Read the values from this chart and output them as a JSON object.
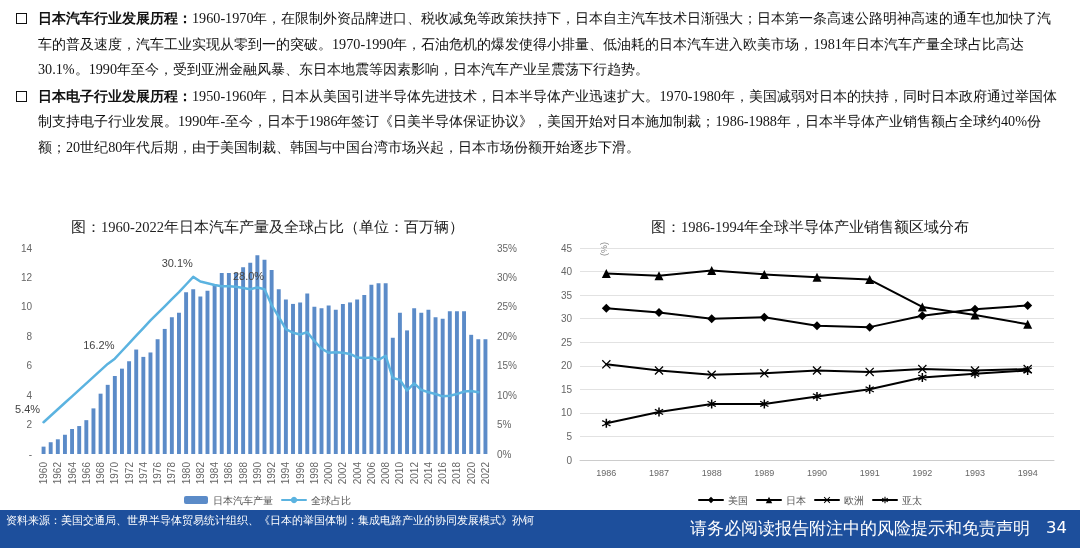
{
  "chart_data": [
    {
      "type": "other",
      "annotations": [
        "日本汽车行业发展历程：1960-1970年，在限制外资品牌进口、税收减免等政策扶持下，日本自主汽车技术日渐强大；日本第一条高速公路明神高速的通车也加快了汽车的普及速度，汽车工业实现从零到一的突破。1970-1990年，石油危机的爆发使得小排量、低油耗的日本汽车进入欧美市场，1981年日本汽车产量全球占比高达30.1%。1990年至今，受到亚洲金融风暴、东日本地震等因素影响，日本汽车产业呈震荡下行趋势。",
        "日本电子行业发展历程：1950-1960年，日本从美国引进半导体先进技术，日本半导体产业迅速扩大。1970-1980年，美国减弱对日本的扶持，同时日本政府通过举国体制支持电子行业发展。1990年-至今，日本于1986年签订《日美半导体保证协议》，美国开始对日本施加制裁；1986-1988年，日本半导体产业销售额占全球约40%份额；20世纪80年代后期，由于美国制裁、韩国与中国台湾市场兴起，日本市场份额开始逐步下滑。"
      ]
    },
    {
      "type": "bar",
      "title": "图：1960-2022年日本汽车产量及全球占比（单位：百万辆）",
      "categories": [
        "1960",
        null,
        "1962",
        null,
        "1964",
        null,
        "1966",
        null,
        "1968",
        null,
        "1970",
        null,
        "1972",
        null,
        "1974",
        null,
        "1976",
        null,
        "1978",
        null,
        "1980",
        null,
        "1982",
        null,
        "1984",
        null,
        "1986",
        null,
        "1988",
        null,
        "1990",
        null,
        "1992",
        null,
        "1994",
        null,
        "1996",
        null,
        "1998",
        null,
        "2000",
        null,
        "2002",
        null,
        "2004",
        null,
        "2006",
        null,
        "2008",
        null,
        "2010",
        null,
        "2012",
        null,
        "2014",
        null,
        "2016",
        null,
        "2018",
        null,
        "2020",
        null,
        "2022"
      ],
      "series": [
        {
          "name": "日本汽车产量",
          "type": "bar",
          "color": "#5b8bc8",
          "values": [
            0.5,
            0.8,
            1.0,
            1.3,
            1.7,
            1.9,
            2.3,
            3.1,
            4.1,
            4.7,
            5.3,
            5.8,
            6.3,
            7.1,
            6.6,
            6.9,
            7.8,
            8.5,
            9.3,
            9.6,
            11.0,
            11.2,
            10.7,
            11.1,
            11.5,
            12.3,
            12.3,
            12.3,
            12.7,
            13.0,
            13.5,
            13.2,
            12.5,
            11.2,
            10.5,
            10.2,
            10.3,
            10.9,
            10.0,
            9.9,
            10.1,
            9.8,
            10.2,
            10.3,
            10.5,
            10.8,
            11.5,
            11.6,
            11.6,
            7.9,
            9.6,
            8.4,
            9.9,
            9.6,
            9.8,
            9.3,
            9.2,
            9.7,
            9.7,
            9.7,
            8.1,
            7.8,
            7.8
          ]
        },
        {
          "name": "全球占比",
          "type": "line",
          "axis": "y2",
          "color": "#5bb3e0",
          "marker": "none",
          "values": [
            5.4,
            6.5,
            7.6,
            8.7,
            9.8,
            10.9,
            12.0,
            13.1,
            14.2,
            15.3,
            16.2,
            17.5,
            18.8,
            20.1,
            21.4,
            22.7,
            23.9,
            25.1,
            26.3,
            27.5,
            28.8,
            30.1,
            29.3,
            29.0,
            28.7,
            28.5,
            28.5,
            28.4,
            28.2,
            28.0,
            28.3,
            28.0,
            25.3,
            23.3,
            21.2,
            20.6,
            20.3,
            20.7,
            19.2,
            17.9,
            17.2,
            17.3,
            17.2,
            17.0,
            16.4,
            16.3,
            16.4,
            16.0,
            16.7,
            12.9,
            12.6,
            10.8,
            12.0,
            10.9,
            10.5,
            10.2,
            9.8,
            9.9,
            10.2,
            10.6,
            10.7,
            10.5,
            null
          ],
          "value_labels": [
            "5.4%",
            null,
            null,
            null,
            null,
            null,
            null,
            null,
            null,
            null,
            "16.2%",
            null,
            null,
            null,
            null,
            null,
            null,
            null,
            null,
            null,
            null,
            "30.1%",
            null,
            null,
            null,
            null,
            null,
            null,
            null,
            null,
            null,
            "28.0%",
            null,
            null,
            null,
            null,
            null,
            null,
            null,
            null,
            null,
            null,
            null,
            null,
            null,
            null,
            null,
            null,
            null,
            null,
            null,
            null,
            null,
            null,
            null,
            null,
            null,
            null,
            null,
            null,
            null,
            null,
            null
          ]
        }
      ],
      "ylim": [
        0,
        14
      ],
      "yticks": [
        {
          "value": 0,
          "label": "-"
        },
        2,
        4,
        6,
        8,
        10,
        12,
        14
      ],
      "y2lim": [
        0,
        35
      ],
      "y2ticks": [
        {
          "value": 0,
          "label": "0%"
        },
        {
          "value": 5,
          "label": "5%"
        },
        {
          "value": 10,
          "label": "10%"
        },
        {
          "value": 15,
          "label": "15%"
        },
        {
          "value": 20,
          "label": "20%"
        },
        {
          "value": 25,
          "label": "25%"
        },
        {
          "value": 30,
          "label": "30%"
        },
        {
          "value": 35,
          "label": "35%"
        }
      ],
      "grid": false,
      "legend": "bottom"
    },
    {
      "type": "line",
      "title": "图：1986-1994年全球半导体产业销售额区域分布",
      "ylabel": "(%)",
      "categories": [
        "1986",
        "1987",
        "1988",
        "1989",
        "1990",
        "1991",
        "1992",
        "1993",
        "1994"
      ],
      "series": [
        {
          "name": "美国",
          "color": "#000000",
          "marker": "diamond",
          "values": [
            32.2,
            31.3,
            30.0,
            30.3,
            28.5,
            28.2,
            30.6,
            32.0,
            32.8
          ]
        },
        {
          "name": "日本",
          "color": "#000000",
          "marker": "triangle",
          "values": [
            39.6,
            39.1,
            40.2,
            39.4,
            38.8,
            38.3,
            32.5,
            30.8,
            28.8
          ]
        },
        {
          "name": "欧洲",
          "color": "#000000",
          "marker": "cross",
          "values": [
            20.3,
            19.0,
            18.1,
            18.4,
            19.0,
            18.7,
            19.3,
            19.0,
            19.3
          ]
        },
        {
          "name": "亚太",
          "color": "#000000",
          "marker": "star",
          "values": [
            7.8,
            10.2,
            11.9,
            11.9,
            13.5,
            15.0,
            17.5,
            18.3,
            19.0
          ]
        }
      ],
      "ylim": [
        0,
        45
      ],
      "yticks": [
        0,
        5,
        10,
        15,
        20,
        25,
        30,
        35,
        40,
        45
      ],
      "grid": "y",
      "legend": "bottom",
      "line_style": "solid"
    },
    {
      "type": "other",
      "annotations": [
        "资料来源：美国交通局、世界半导体贸易统计组织、《日本的举国体制：集成电路产业的协同发展模式》孙钶",
        "请务必阅读报告附注中的风险提示和免责声明",
        "34"
      ]
    }
  ]
}
